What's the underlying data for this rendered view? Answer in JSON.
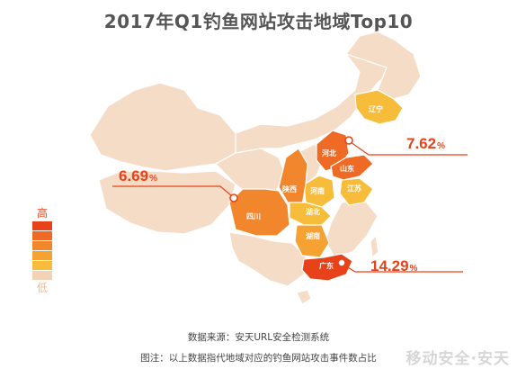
{
  "title": "2017年Q1钓鱼网站攻击地域Top10",
  "legend": {
    "high": "高",
    "low": "低",
    "colors": [
      "#e8421a",
      "#ef6a24",
      "#f2862c",
      "#f5a233",
      "#f7bc3a",
      "#f2d3b5"
    ]
  },
  "callouts": {
    "liaoning": {
      "value": "7.62",
      "unit": "%"
    },
    "sichuan": {
      "value": "6.69",
      "unit": "%"
    },
    "guangdong": {
      "value": "14.29",
      "unit": "%"
    }
  },
  "provinces": {
    "liaoning": "辽宁",
    "hebei": "河北",
    "shandong": "山东",
    "henan": "河南",
    "shaanxi": "陕西",
    "jiangsu": "江苏",
    "hubei": "湖北",
    "sichuan": "四川",
    "hunan": "湖南",
    "guangdong": "广东"
  },
  "footer": {
    "source": "数据来源：安天URL安全检测系统",
    "note": "图注：以上数据指代地域对应的钓鱼网站攻击事件数占比"
  },
  "watermark": "移动安全·安天",
  "colors": {
    "base": "#f4dcc6",
    "accent": "#e8421a",
    "border": "#ffffff"
  }
}
